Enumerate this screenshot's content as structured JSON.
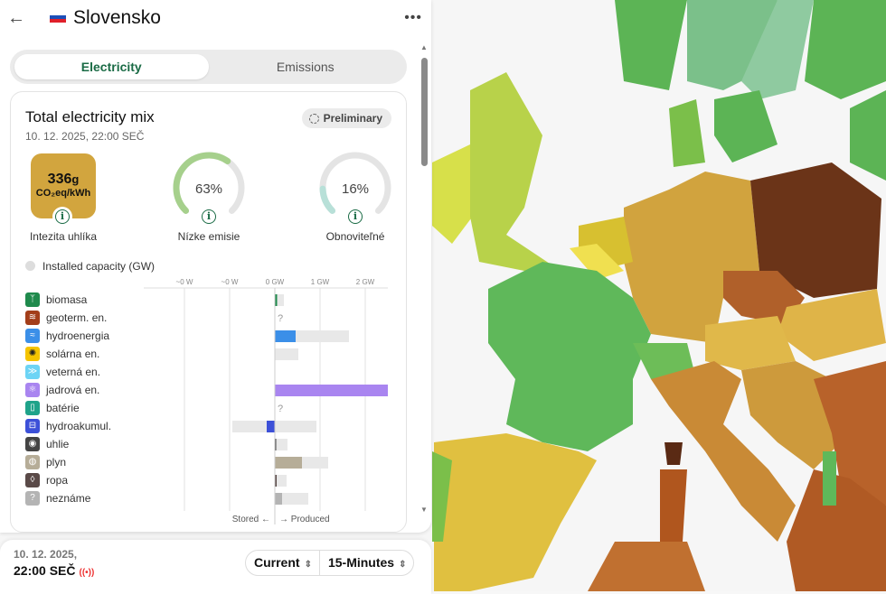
{
  "header": {
    "title": "Slovensko",
    "back_icon": "arrow-left-icon",
    "more_icon": "more-dots-icon"
  },
  "tabs": [
    {
      "label": "Electricity",
      "active": true
    },
    {
      "label": "Emissions",
      "active": false
    }
  ],
  "card": {
    "title": "Total electricity mix",
    "date": "10. 12. 2025, 22:00 SEČ",
    "badge": "Preliminary",
    "carbon": {
      "value": "336",
      "unit": "g",
      "unit2": "CO₂eq/kWh",
      "label": "Intezita uhlíka",
      "color": "#d2a53e"
    },
    "low_emission": {
      "value": "63%",
      "percent": 63,
      "label": "Nízke emisie",
      "color": "#a6d08c"
    },
    "renewable": {
      "value": "16%",
      "percent": 16,
      "label": "Obnoviteľné",
      "color": "#b8e0d8"
    },
    "legend": "Installed capacity (GW)"
  },
  "chart_data": {
    "type": "bar",
    "orientation": "horizontal",
    "unit": "GW",
    "ticks": [
      "~0 W",
      "~0 W",
      "0 GW",
      "1 GW",
      "2 GW"
    ],
    "tick_values": [
      -2,
      -1,
      0,
      1,
      2
    ],
    "xlim": [
      -2.9,
      2.5
    ],
    "axis_left_label": "Stored ←",
    "axis_right_label": "→ Produced",
    "categories": [
      {
        "label": "biomasa",
        "color": "#1f8a4c",
        "icon": "sprout-icon",
        "produced": 0.05,
        "capacity": 0.2
      },
      {
        "label": "geoterm. en.",
        "color": "#a33e1a",
        "icon": "heat-icon",
        "unknown": "?"
      },
      {
        "label": "hydroenergia",
        "color": "#3b8fe8",
        "icon": "water-icon",
        "produced": 0.46,
        "capacity": 1.64
      },
      {
        "label": "solárna en.",
        "color": "#f5c400",
        "icon": "sun-icon",
        "produced": 0,
        "capacity": 0.52
      },
      {
        "label": "veterná en.",
        "color": "#6dd4f5",
        "icon": "wind-icon",
        "produced": 0,
        "capacity": 0
      },
      {
        "label": "jadrová en.",
        "color": "#a985f0",
        "icon": "atom-icon",
        "produced": 2.5,
        "capacity": 2.5
      },
      {
        "label": "batérie",
        "color": "#1fa38a",
        "icon": "battery-icon",
        "unknown": "?"
      },
      {
        "label": "hydroakumul.",
        "color": "#3c50d8",
        "icon": "pumped-storage-icon",
        "produced": -0.18,
        "capacity": 0.92,
        "storage_capacity": -0.94
      },
      {
        "label": "uhlie",
        "color": "#444444",
        "icon": "coal-icon",
        "produced": 0.01,
        "capacity": 0.28
      },
      {
        "label": "plyn",
        "color": "#b6ad98",
        "icon": "gas-icon",
        "produced": 0.6,
        "capacity": 1.18
      },
      {
        "label": "ropa",
        "color": "#5a4a48",
        "icon": "oil-icon",
        "produced": 0.04,
        "capacity": 0.26
      },
      {
        "label": "neznáme",
        "color": "#b4b4b4",
        "icon": "question-icon",
        "produced": 0.16,
        "capacity": 0.74
      }
    ]
  },
  "footer": {
    "date": "10. 12. 2025,",
    "time": "22:00 SEČ",
    "live_icon": "live-broadcast-icon",
    "mode": "Current",
    "interval": "15-Minutes"
  }
}
